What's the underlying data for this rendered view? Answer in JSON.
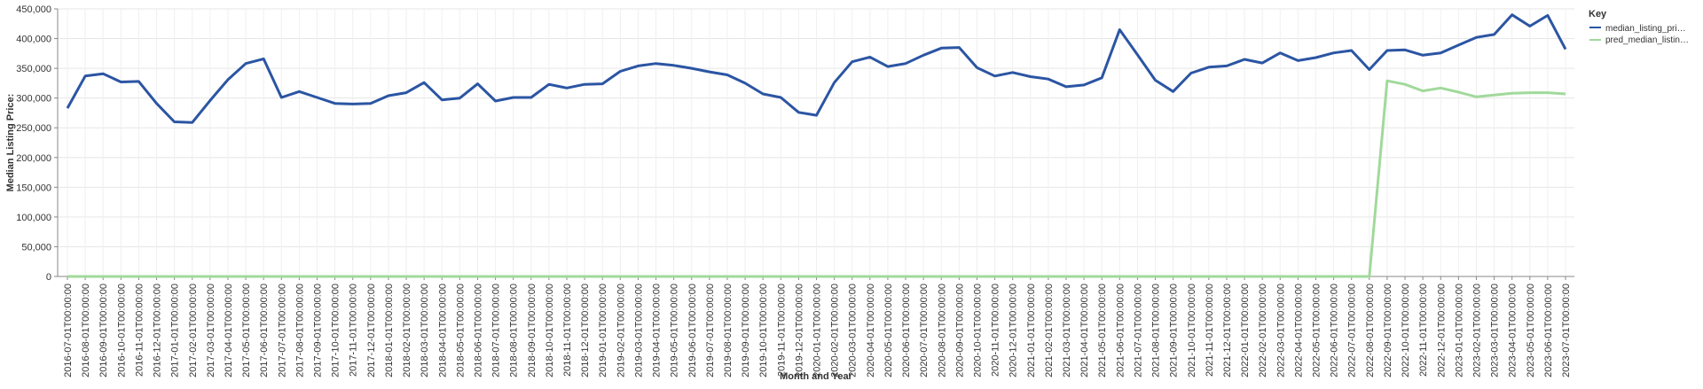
{
  "chart_data": {
    "type": "line",
    "xlabel": "Month and Year",
    "ylabel": "Median Listing Price:",
    "ylim": [
      0,
      450000
    ],
    "yticks": [
      "0",
      "50,000",
      "100,000",
      "150,000",
      "200,000",
      "250,000",
      "300,000",
      "350,000",
      "400,000",
      "450,000"
    ],
    "grid": true,
    "legend": {
      "title": "Key",
      "placement": "top-right",
      "entries": [
        "median_listing_pri…",
        "pred_median_listin…"
      ]
    },
    "x": [
      "2016-07-01T00:00:00",
      "2016-08-01T00:00:00",
      "2016-09-01T00:00:00",
      "2016-10-01T00:00:00",
      "2016-11-01T00:00:00",
      "2016-12-01T00:00:00",
      "2017-01-01T00:00:00",
      "2017-02-01T00:00:00",
      "2017-03-01T00:00:00",
      "2017-04-01T00:00:00",
      "2017-05-01T00:00:00",
      "2017-06-01T00:00:00",
      "2017-07-01T00:00:00",
      "2017-08-01T00:00:00",
      "2017-09-01T00:00:00",
      "2017-10-01T00:00:00",
      "2017-11-01T00:00:00",
      "2017-12-01T00:00:00",
      "2018-01-01T00:00:00",
      "2018-02-01T00:00:00",
      "2018-03-01T00:00:00",
      "2018-04-01T00:00:00",
      "2018-05-01T00:00:00",
      "2018-06-01T00:00:00",
      "2018-07-01T00:00:00",
      "2018-08-01T00:00:00",
      "2018-09-01T00:00:00",
      "2018-10-01T00:00:00",
      "2018-11-01T00:00:00",
      "2018-12-01T00:00:00",
      "2019-01-01T00:00:00",
      "2019-02-01T00:00:00",
      "2019-03-01T00:00:00",
      "2019-04-01T00:00:00",
      "2019-05-01T00:00:00",
      "2019-06-01T00:00:00",
      "2019-07-01T00:00:00",
      "2019-08-01T00:00:00",
      "2019-09-01T00:00:00",
      "2019-10-01T00:00:00",
      "2019-11-01T00:00:00",
      "2019-12-01T00:00:00",
      "2020-01-01T00:00:00",
      "2020-02-01T00:00:00",
      "2020-03-01T00:00:00",
      "2020-04-01T00:00:00",
      "2020-05-01T00:00:00",
      "2020-06-01T00:00:00",
      "2020-07-01T00:00:00",
      "2020-08-01T00:00:00",
      "2020-09-01T00:00:00",
      "2020-10-01T00:00:00",
      "2020-11-01T00:00:00",
      "2020-12-01T00:00:00",
      "2021-01-01T00:00:00",
      "2021-02-01T00:00:00",
      "2021-03-01T00:00:00",
      "2021-04-01T00:00:00",
      "2021-05-01T00:00:00",
      "2021-06-01T00:00:00",
      "2021-07-01T00:00:00",
      "2021-08-01T00:00:00",
      "2021-09-01T00:00:00",
      "2021-10-01T00:00:00",
      "2021-11-01T00:00:00",
      "2021-12-01T00:00:00",
      "2022-01-01T00:00:00",
      "2022-02-01T00:00:00",
      "2022-03-01T00:00:00",
      "2022-04-01T00:00:00",
      "2022-05-01T00:00:00",
      "2022-06-01T00:00:00",
      "2022-07-01T00:00:00",
      "2022-08-01T00:00:00",
      "2022-09-01T00:00:00",
      "2022-10-01T00:00:00",
      "2022-11-01T00:00:00",
      "2022-12-01T00:00:00",
      "2023-01-01T00:00:00",
      "2023-02-01T00:00:00",
      "2023-03-01T00:00:00",
      "2023-04-01T00:00:00",
      "2023-05-01T00:00:00",
      "2023-06-01T00:00:00",
      "2023-07-01T00:00:00"
    ],
    "series": [
      {
        "name": "median_listing_pri…",
        "color": "#2b55a3",
        "values": [
          283000,
          337000,
          341000,
          327000,
          328000,
          291000,
          260000,
          259000,
          296000,
          331000,
          358000,
          366000,
          301000,
          311000,
          301000,
          291000,
          290000,
          291000,
          304000,
          309000,
          326000,
          297000,
          300000,
          324000,
          295000,
          301000,
          301000,
          323000,
          317000,
          323000,
          324000,
          345000,
          354000,
          358000,
          355000,
          350000,
          344000,
          339000,
          325000,
          307000,
          301000,
          276000,
          271000,
          326000,
          361000,
          369000,
          353000,
          358000,
          372000,
          384000,
          385000,
          351000,
          337000,
          343000,
          336000,
          332000,
          319000,
          322000,
          334000,
          415000,
          373000,
          330000,
          311000,
          342000,
          352000,
          354000,
          365000,
          359000,
          376000,
          363000,
          368000,
          376000,
          380000,
          348000,
          380000,
          381000,
          372000,
          376000,
          389000,
          402000,
          407000,
          440000,
          421000,
          439000,
          382000
        ]
      },
      {
        "name": "pred_median_listin…",
        "color": "#a1d99b",
        "values": [
          0,
          0,
          0,
          0,
          0,
          0,
          0,
          0,
          0,
          0,
          0,
          0,
          0,
          0,
          0,
          0,
          0,
          0,
          0,
          0,
          0,
          0,
          0,
          0,
          0,
          0,
          0,
          0,
          0,
          0,
          0,
          0,
          0,
          0,
          0,
          0,
          0,
          0,
          0,
          0,
          0,
          0,
          0,
          0,
          0,
          0,
          0,
          0,
          0,
          0,
          0,
          0,
          0,
          0,
          0,
          0,
          0,
          0,
          0,
          0,
          0,
          0,
          0,
          0,
          0,
          0,
          0,
          0,
          0,
          0,
          0,
          0,
          0,
          0,
          329000,
          323000,
          312000,
          317000,
          310000,
          302000,
          305000,
          308000,
          309000,
          309000,
          307000
        ]
      }
    ]
  }
}
